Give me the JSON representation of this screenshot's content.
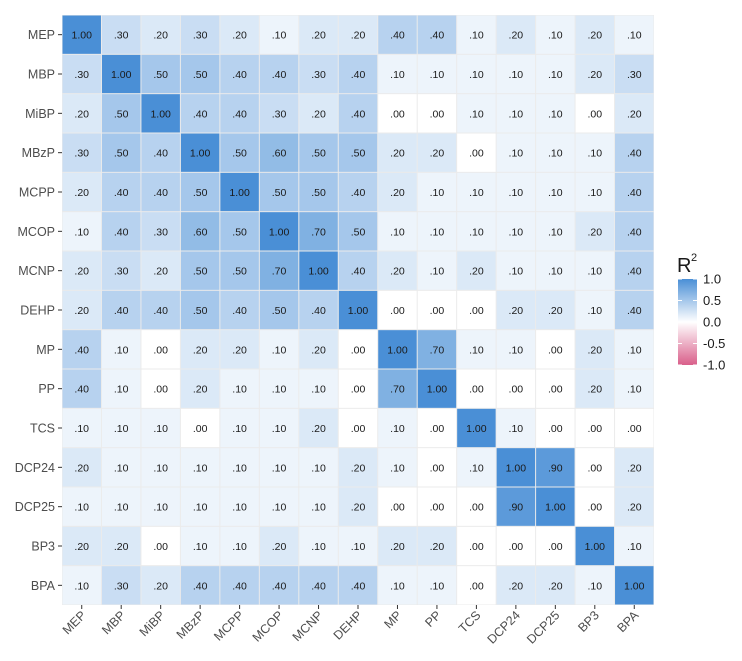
{
  "chart_data": {
    "type": "heatmap",
    "title": "",
    "x_categories": [
      "MEP",
      "MBP",
      "MiBP",
      "MBzP",
      "MCPP",
      "MCOP",
      "MCNP",
      "DEHP",
      "MP",
      "PP",
      "TCS",
      "DCP24",
      "DCP25",
      "BP3",
      "BPA"
    ],
    "y_categories": [
      "MEP",
      "MBP",
      "MiBP",
      "MBzP",
      "MCPP",
      "MCOP",
      "MCNP",
      "DEHP",
      "MP",
      "PP",
      "TCS",
      "DCP24",
      "DCP25",
      "BP3",
      "BPA"
    ],
    "values": [
      [
        1.0,
        0.3,
        0.2,
        0.3,
        0.2,
        0.1,
        0.2,
        0.2,
        0.4,
        0.4,
        0.1,
        0.2,
        0.1,
        0.2,
        0.1
      ],
      [
        0.3,
        1.0,
        0.5,
        0.5,
        0.4,
        0.4,
        0.3,
        0.4,
        0.1,
        0.1,
        0.1,
        0.1,
        0.1,
        0.2,
        0.3
      ],
      [
        0.2,
        0.5,
        1.0,
        0.4,
        0.4,
        0.3,
        0.2,
        0.4,
        0.0,
        0.0,
        0.1,
        0.1,
        0.1,
        0.0,
        0.2
      ],
      [
        0.3,
        0.5,
        0.4,
        1.0,
        0.5,
        0.6,
        0.5,
        0.5,
        0.2,
        0.2,
        0.0,
        0.1,
        0.1,
        0.1,
        0.4
      ],
      [
        0.2,
        0.4,
        0.4,
        0.5,
        1.0,
        0.5,
        0.5,
        0.4,
        0.2,
        0.1,
        0.1,
        0.1,
        0.1,
        0.1,
        0.4
      ],
      [
        0.1,
        0.4,
        0.3,
        0.6,
        0.5,
        1.0,
        0.7,
        0.5,
        0.1,
        0.1,
        0.1,
        0.1,
        0.1,
        0.2,
        0.4
      ],
      [
        0.2,
        0.3,
        0.2,
        0.5,
        0.5,
        0.7,
        1.0,
        0.4,
        0.2,
        0.1,
        0.2,
        0.1,
        0.1,
        0.1,
        0.4
      ],
      [
        0.2,
        0.4,
        0.4,
        0.5,
        0.4,
        0.5,
        0.4,
        1.0,
        0.0,
        0.0,
        0.0,
        0.2,
        0.2,
        0.1,
        0.4
      ],
      [
        0.4,
        0.1,
        0.0,
        0.2,
        0.2,
        0.1,
        0.2,
        0.0,
        1.0,
        0.7,
        0.1,
        0.1,
        0.0,
        0.2,
        0.1
      ],
      [
        0.4,
        0.1,
        0.0,
        0.2,
        0.1,
        0.1,
        0.1,
        0.0,
        0.7,
        1.0,
        0.0,
        0.0,
        0.0,
        0.2,
        0.1
      ],
      [
        0.1,
        0.1,
        0.1,
        0.0,
        0.1,
        0.1,
        0.2,
        0.0,
        0.1,
        0.0,
        1.0,
        0.1,
        0.0,
        0.0,
        0.0
      ],
      [
        0.2,
        0.1,
        0.1,
        0.1,
        0.1,
        0.1,
        0.1,
        0.2,
        0.1,
        0.0,
        0.1,
        1.0,
        0.9,
        0.0,
        0.2
      ],
      [
        0.1,
        0.1,
        0.1,
        0.1,
        0.1,
        0.1,
        0.1,
        0.2,
        0.0,
        0.0,
        0.0,
        0.9,
        1.0,
        0.0,
        0.2
      ],
      [
        0.2,
        0.2,
        0.0,
        0.1,
        0.1,
        0.2,
        0.1,
        0.1,
        0.2,
        0.2,
        0.0,
        0.0,
        0.0,
        1.0,
        0.1
      ],
      [
        0.1,
        0.3,
        0.2,
        0.4,
        0.4,
        0.4,
        0.4,
        0.4,
        0.1,
        0.1,
        0.0,
        0.2,
        0.2,
        0.1,
        1.0
      ]
    ],
    "cell_labels": [
      [
        "1.00",
        ".30",
        ".20",
        ".30",
        ".20",
        ".10",
        ".20",
        ".20",
        ".40",
        ".40",
        ".10",
        ".20",
        ".10",
        ".20",
        ".10"
      ],
      [
        ".30",
        "1.00",
        ".50",
        ".50",
        ".40",
        ".40",
        ".30",
        ".40",
        ".10",
        ".10",
        ".10",
        ".10",
        ".10",
        ".20",
        ".30"
      ],
      [
        ".20",
        ".50",
        "1.00",
        ".40",
        ".40",
        ".30",
        ".20",
        ".40",
        ".00",
        ".00",
        ".10",
        ".10",
        ".10",
        ".00",
        ".20"
      ],
      [
        ".30",
        ".50",
        ".40",
        "1.00",
        ".50",
        ".60",
        ".50",
        ".50",
        ".20",
        ".20",
        ".00",
        ".10",
        ".10",
        ".10",
        ".40"
      ],
      [
        ".20",
        ".40",
        ".40",
        ".50",
        "1.00",
        ".50",
        ".50",
        ".40",
        ".20",
        ".10",
        ".10",
        ".10",
        ".10",
        ".10",
        ".40"
      ],
      [
        ".10",
        ".40",
        ".30",
        ".60",
        ".50",
        "1.00",
        ".70",
        ".50",
        ".10",
        ".10",
        ".10",
        ".10",
        ".10",
        ".20",
        ".40"
      ],
      [
        ".20",
        ".30",
        ".20",
        ".50",
        ".50",
        ".70",
        "1.00",
        ".40",
        ".20",
        ".10",
        ".20",
        ".10",
        ".10",
        ".10",
        ".40"
      ],
      [
        ".20",
        ".40",
        ".40",
        ".50",
        ".40",
        ".50",
        ".40",
        "1.00",
        ".00",
        ".00",
        ".00",
        ".20",
        ".20",
        ".10",
        ".40"
      ],
      [
        ".40",
        ".10",
        ".00",
        ".20",
        ".20",
        ".10",
        ".20",
        ".00",
        "1.00",
        ".70",
        ".10",
        ".10",
        ".00",
        ".20",
        ".10"
      ],
      [
        ".40",
        ".10",
        ".00",
        ".20",
        ".10",
        ".10",
        ".10",
        ".00",
        ".70",
        "1.00",
        ".00",
        ".00",
        ".00",
        ".20",
        ".10"
      ],
      [
        ".10",
        ".10",
        ".10",
        ".00",
        ".10",
        ".10",
        ".20",
        ".00",
        ".10",
        ".00",
        "1.00",
        ".10",
        ".00",
        ".00",
        ".00"
      ],
      [
        ".20",
        ".10",
        ".10",
        ".10",
        ".10",
        ".10",
        ".10",
        ".20",
        ".10",
        ".00",
        ".10",
        "1.00",
        ".90",
        ".00",
        ".20"
      ],
      [
        ".10",
        ".10",
        ".10",
        ".10",
        ".10",
        ".10",
        ".10",
        ".20",
        ".00",
        ".00",
        ".00",
        ".90",
        "1.00",
        ".00",
        ".20"
      ],
      [
        ".20",
        ".20",
        ".00",
        ".10",
        ".10",
        ".20",
        ".10",
        ".10",
        ".20",
        ".20",
        ".00",
        ".00",
        ".00",
        "1.00",
        ".10"
      ],
      [
        ".10",
        ".30",
        ".20",
        ".40",
        ".40",
        ".40",
        ".40",
        ".40",
        ".10",
        ".10",
        ".00",
        ".20",
        ".20",
        ".10",
        "1.00"
      ]
    ],
    "scale": {
      "title": "R",
      "title_superscript": "2",
      "min": -1.0,
      "max": 1.0,
      "ticks": [
        1.0,
        0.5,
        0.0,
        -0.5,
        -1.0
      ],
      "tick_labels": [
        "1.0",
        "0.5",
        "0.0",
        "-0.5",
        "-1.0"
      ],
      "low_color": "#d95f8a",
      "mid_color": "#ffffff",
      "high_color": "#4a8fd6"
    },
    "legend_placement": "right",
    "panel_background": "#ebebeb",
    "grid": false
  }
}
